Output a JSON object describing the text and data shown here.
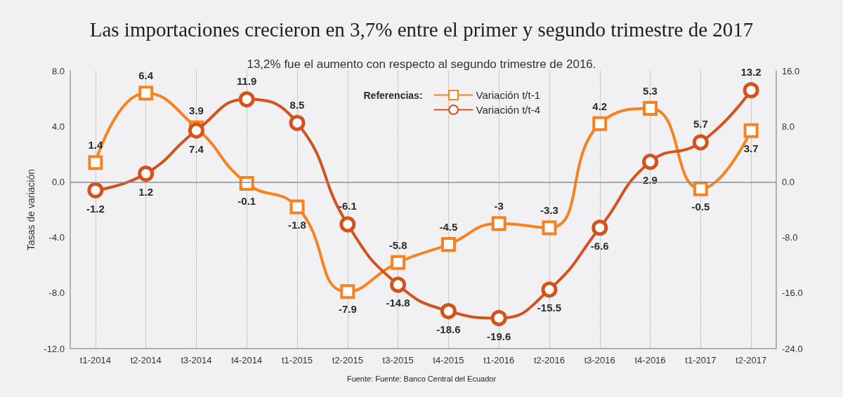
{
  "chart_data": {
    "type": "line",
    "title": "Las importaciones crecieron en 3,7% entre el primer y segundo trimestre de 2017",
    "subtitle": "13,2% fue el aumento con respecto al segundo trimestre de 2016.",
    "ylabel": "Tasas de variación",
    "legend_title": "Referencias:",
    "annotations": [
      "Fuente: Fuente: Banco Central del Ecuador"
    ],
    "categories": [
      "t1-2014",
      "t2-2014",
      "t3-2014",
      "t4-2014",
      "t1-2015",
      "t2-2015",
      "t3-2015",
      "t4-2015",
      "t1-2016",
      "t2-2016",
      "t3-2016",
      "t4-2016",
      "t1-2017",
      "t2-2017"
    ],
    "series": [
      {
        "name": "Variación t/t-1",
        "color": "#f7821f",
        "marker": "square",
        "values": [
          1.4,
          6.4,
          3.9,
          -0.1,
          -1.8,
          -7.9,
          -5.8,
          -4.5,
          -3,
          -3.3,
          4.2,
          5.3,
          -0.5,
          3.7
        ]
      },
      {
        "name": "Variación t/t-4",
        "color": "#d4521c",
        "marker": "circle",
        "axis": "y2",
        "values": [
          -1.2,
          1.2,
          7.4,
          11.9,
          8.5,
          -6.1,
          -14.8,
          -18.6,
          -19.6,
          -15.5,
          -6.6,
          2.9,
          5.7,
          13.2
        ]
      }
    ],
    "ylim": [
      -12,
      8
    ],
    "yticks": [
      {
        "value": -12,
        "label": "-12.0"
      },
      {
        "value": -8,
        "label": "-8.0"
      },
      {
        "value": -4,
        "label": "-4.0"
      },
      {
        "value": 0,
        "label": "0.0"
      },
      {
        "value": 4,
        "label": "4.0"
      },
      {
        "value": 8,
        "label": "8.0"
      }
    ],
    "y2lim": [
      -24,
      16
    ],
    "y2ticks": [
      {
        "value": -24,
        "label": "-24.0"
      },
      {
        "value": -16,
        "label": "-16.0"
      },
      {
        "value": -8,
        "label": "-8.0"
      },
      {
        "value": 0,
        "label": "0.0"
      },
      {
        "value": 8,
        "label": "8.0"
      },
      {
        "value": 16,
        "label": "16.0"
      }
    ],
    "ref_lines": [
      {
        "axis": "y",
        "value": 0,
        "color": "#8c8c8c"
      }
    ],
    "grid": "x",
    "legend": "top",
    "data_labels": true,
    "line_style": "solid"
  }
}
